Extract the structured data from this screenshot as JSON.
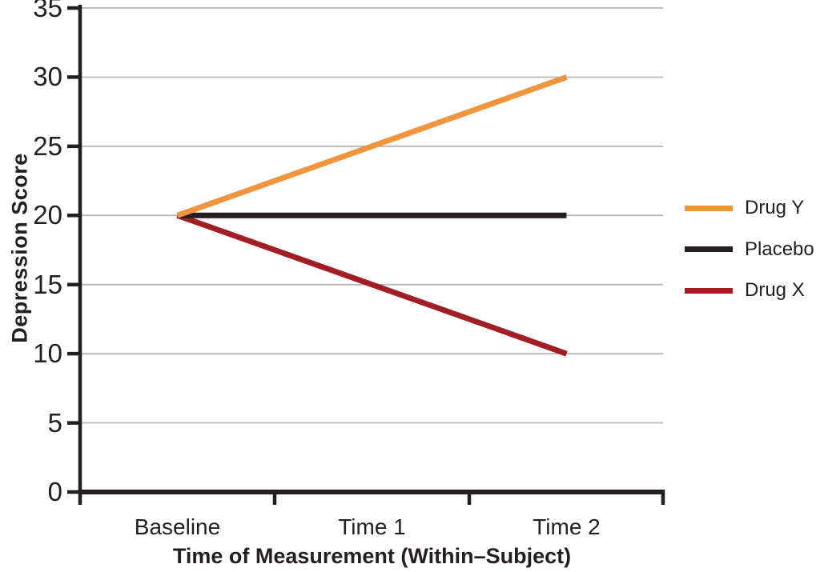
{
  "chart_data": {
    "type": "line",
    "title": "",
    "categories": [
      "Baseline",
      "Time 1",
      "Time 2"
    ],
    "series": [
      {
        "name": "Drug Y",
        "color": "#F0953E",
        "values": [
          20,
          25,
          30
        ]
      },
      {
        "name": "Placebo",
        "color": "#231F20",
        "values": [
          20,
          20,
          20
        ]
      },
      {
        "name": "Drug X",
        "color": "#A21E25",
        "values": [
          20,
          15,
          10
        ]
      }
    ],
    "xlabel": "Time of Measurement (Within–Subject)",
    "ylabel": "Depression Score",
    "ylim": [
      0,
      35
    ],
    "ytick_step": 5,
    "grid": true,
    "legend_position": "right",
    "colors": {
      "axis": "#231F20",
      "grid": "#B4B4B4",
      "background": "#FFFFFF"
    }
  }
}
